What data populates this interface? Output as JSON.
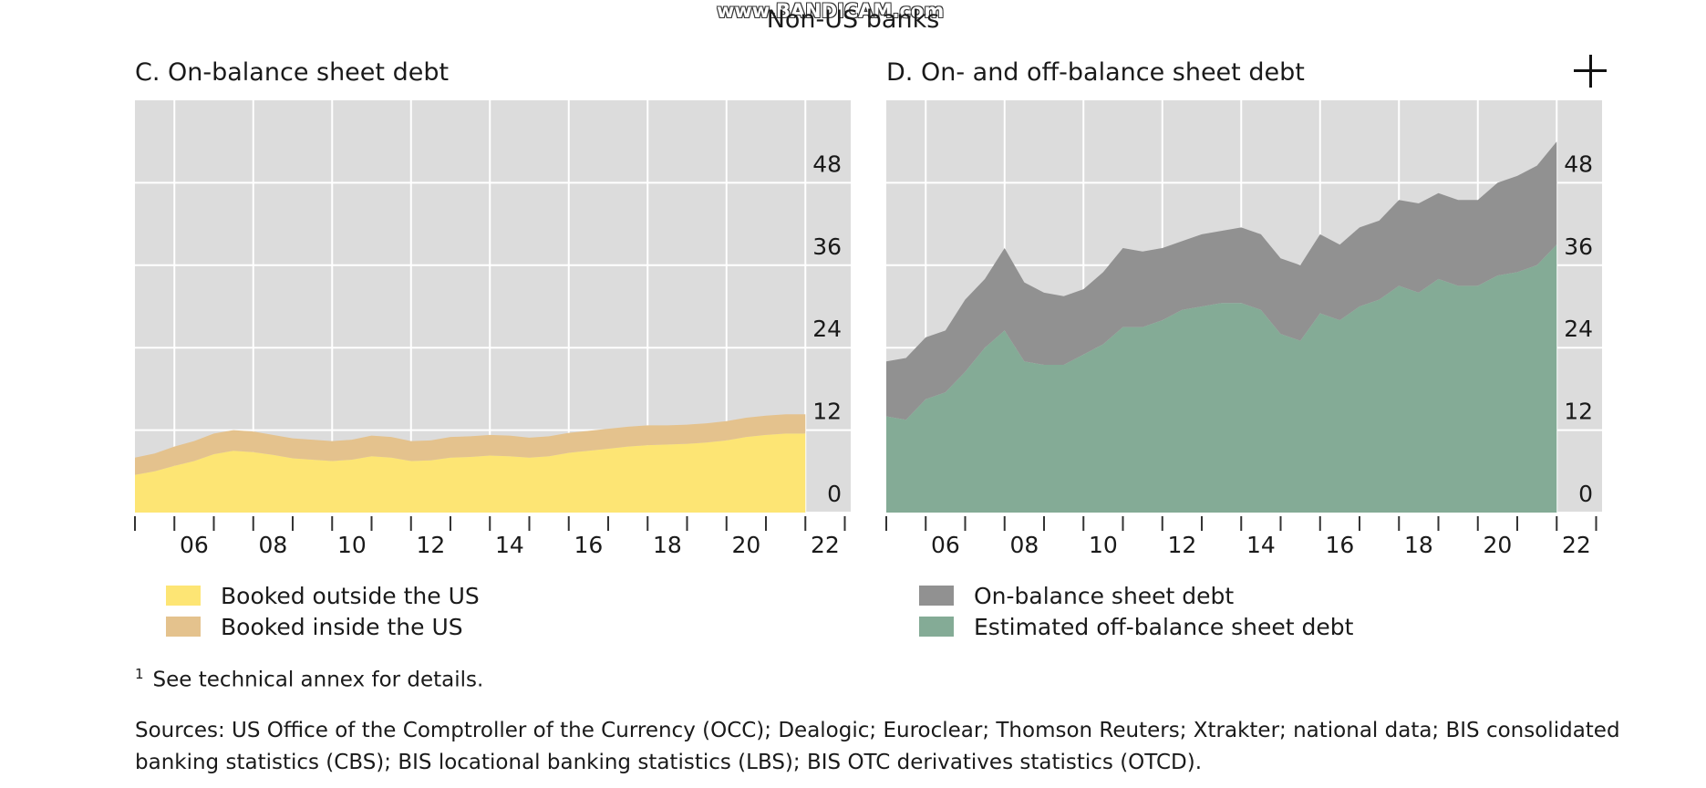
{
  "watermark": "www.BANDICAM.com",
  "super_title": "Non-US banks",
  "crosshair_icon": "crosshair-icon",
  "footnote": {
    "marker": "1",
    "text": "See technical annex for details."
  },
  "sources": "Sources: US Office of the Comptroller of the Currency (OCC); Dealogic; Euroclear; Thomson Reuters; Xtrakter; national data; BIS consolidated banking statistics (CBS); BIS locational banking statistics (LBS); BIS OTC derivatives statistics (OTCD).",
  "colors": {
    "plot_bg": "#dcdcdc",
    "grid": "#ffffff",
    "yellow": "#fde574",
    "tan": "#e4c28d",
    "grey": "#919191",
    "green": "#84ab96"
  },
  "chart_data": [
    {
      "type": "area",
      "stacked": true,
      "title": "C. On-balance sheet debt",
      "x": [
        2005.0,
        2005.5,
        2006.0,
        2006.5,
        2007.0,
        2007.5,
        2008.0,
        2008.5,
        2009.0,
        2009.5,
        2010.0,
        2010.5,
        2011.0,
        2011.5,
        2012.0,
        2012.5,
        2013.0,
        2013.5,
        2014.0,
        2014.5,
        2015.0,
        2015.5,
        2016.0,
        2016.5,
        2017.0,
        2017.5,
        2018.0,
        2018.5,
        2019.0,
        2019.5,
        2020.0,
        2020.5,
        2021.0,
        2021.5,
        2022.0
      ],
      "series": [
        {
          "name": "Booked outside the US",
          "color": "#fde574",
          "values": [
            5.5,
            6.0,
            6.8,
            7.5,
            8.5,
            9.0,
            8.8,
            8.4,
            7.9,
            7.7,
            7.5,
            7.7,
            8.2,
            8.0,
            7.5,
            7.6,
            8.0,
            8.1,
            8.3,
            8.2,
            8.0,
            8.2,
            8.7,
            9.0,
            9.3,
            9.6,
            9.8,
            9.9,
            10.0,
            10.2,
            10.5,
            11.0,
            11.3,
            11.5,
            11.5
          ]
        },
        {
          "name": "Booked inside the US",
          "color": "#e4c28d",
          "values": [
            2.5,
            2.6,
            2.8,
            2.9,
            3.0,
            3.0,
            3.0,
            2.9,
            2.9,
            2.9,
            2.9,
            2.9,
            3.0,
            3.0,
            2.9,
            2.9,
            3.0,
            3.0,
            3.0,
            3.0,
            2.9,
            2.9,
            2.9,
            2.9,
            2.9,
            2.9,
            2.9,
            2.8,
            2.8,
            2.8,
            2.8,
            2.8,
            2.8,
            2.8,
            2.8
          ]
        }
      ],
      "x_ticks": [
        "06",
        "08",
        "10",
        "12",
        "14",
        "16",
        "18",
        "20",
        "22"
      ],
      "y_ticks": [
        0,
        12,
        24,
        36,
        48
      ],
      "ylim": [
        0,
        60
      ],
      "xlim": [
        2005.0,
        2023.0
      ],
      "y_axis_side": "right",
      "grid": true
    },
    {
      "type": "area",
      "stacked": true,
      "title": "D. On- and off-balance sheet debt",
      "x": [
        2005.0,
        2005.5,
        2006.0,
        2006.5,
        2007.0,
        2007.5,
        2008.0,
        2008.5,
        2009.0,
        2009.5,
        2010.0,
        2010.5,
        2011.0,
        2011.5,
        2012.0,
        2012.5,
        2013.0,
        2013.5,
        2014.0,
        2014.5,
        2015.0,
        2015.5,
        2016.0,
        2016.5,
        2017.0,
        2017.5,
        2018.0,
        2018.5,
        2019.0,
        2019.5,
        2020.0,
        2020.5,
        2021.0,
        2021.5,
        2022.0
      ],
      "series": [
        {
          "name": "Estimated off-balance sheet debt",
          "color": "#84ab96",
          "values": [
            14.0,
            13.5,
            16.5,
            17.5,
            20.5,
            24.0,
            26.5,
            22.0,
            21.5,
            21.5,
            23.0,
            24.5,
            27.0,
            27.0,
            28.0,
            29.5,
            30.0,
            30.5,
            30.5,
            29.5,
            26.0,
            25.0,
            29.0,
            28.0,
            30.0,
            31.0,
            33.0,
            32.0,
            34.0,
            33.0,
            33.0,
            34.5,
            35.0,
            36.0,
            39.0
          ]
        },
        {
          "name": "On-balance sheet debt",
          "color": "#919191",
          "values": [
            8.0,
            9.0,
            9.0,
            9.0,
            10.5,
            10.0,
            12.0,
            11.5,
            10.5,
            10.0,
            9.5,
            10.5,
            11.5,
            11.0,
            10.5,
            10.0,
            10.5,
            10.5,
            11.0,
            11.0,
            11.0,
            11.0,
            11.5,
            11.0,
            11.5,
            11.5,
            12.5,
            13.0,
            12.5,
            12.5,
            12.5,
            13.5,
            14.0,
            14.5,
            15.0
          ]
        }
      ],
      "x_ticks": [
        "06",
        "08",
        "10",
        "12",
        "14",
        "16",
        "18",
        "20",
        "22"
      ],
      "y_ticks": [
        0,
        12,
        24,
        36,
        48
      ],
      "ylim": [
        0,
        60
      ],
      "xlim": [
        2005.0,
        2023.0
      ],
      "y_axis_side": "right",
      "grid": true
    }
  ],
  "legends": [
    [
      {
        "label": "Booked outside the US",
        "color": "#fde574"
      },
      {
        "label": "Booked inside the US",
        "color": "#e4c28d"
      }
    ],
    [
      {
        "label": "On-balance sheet debt",
        "color": "#919191"
      },
      {
        "label": "Estimated off-balance sheet debt",
        "color": "#84ab96"
      }
    ]
  ]
}
